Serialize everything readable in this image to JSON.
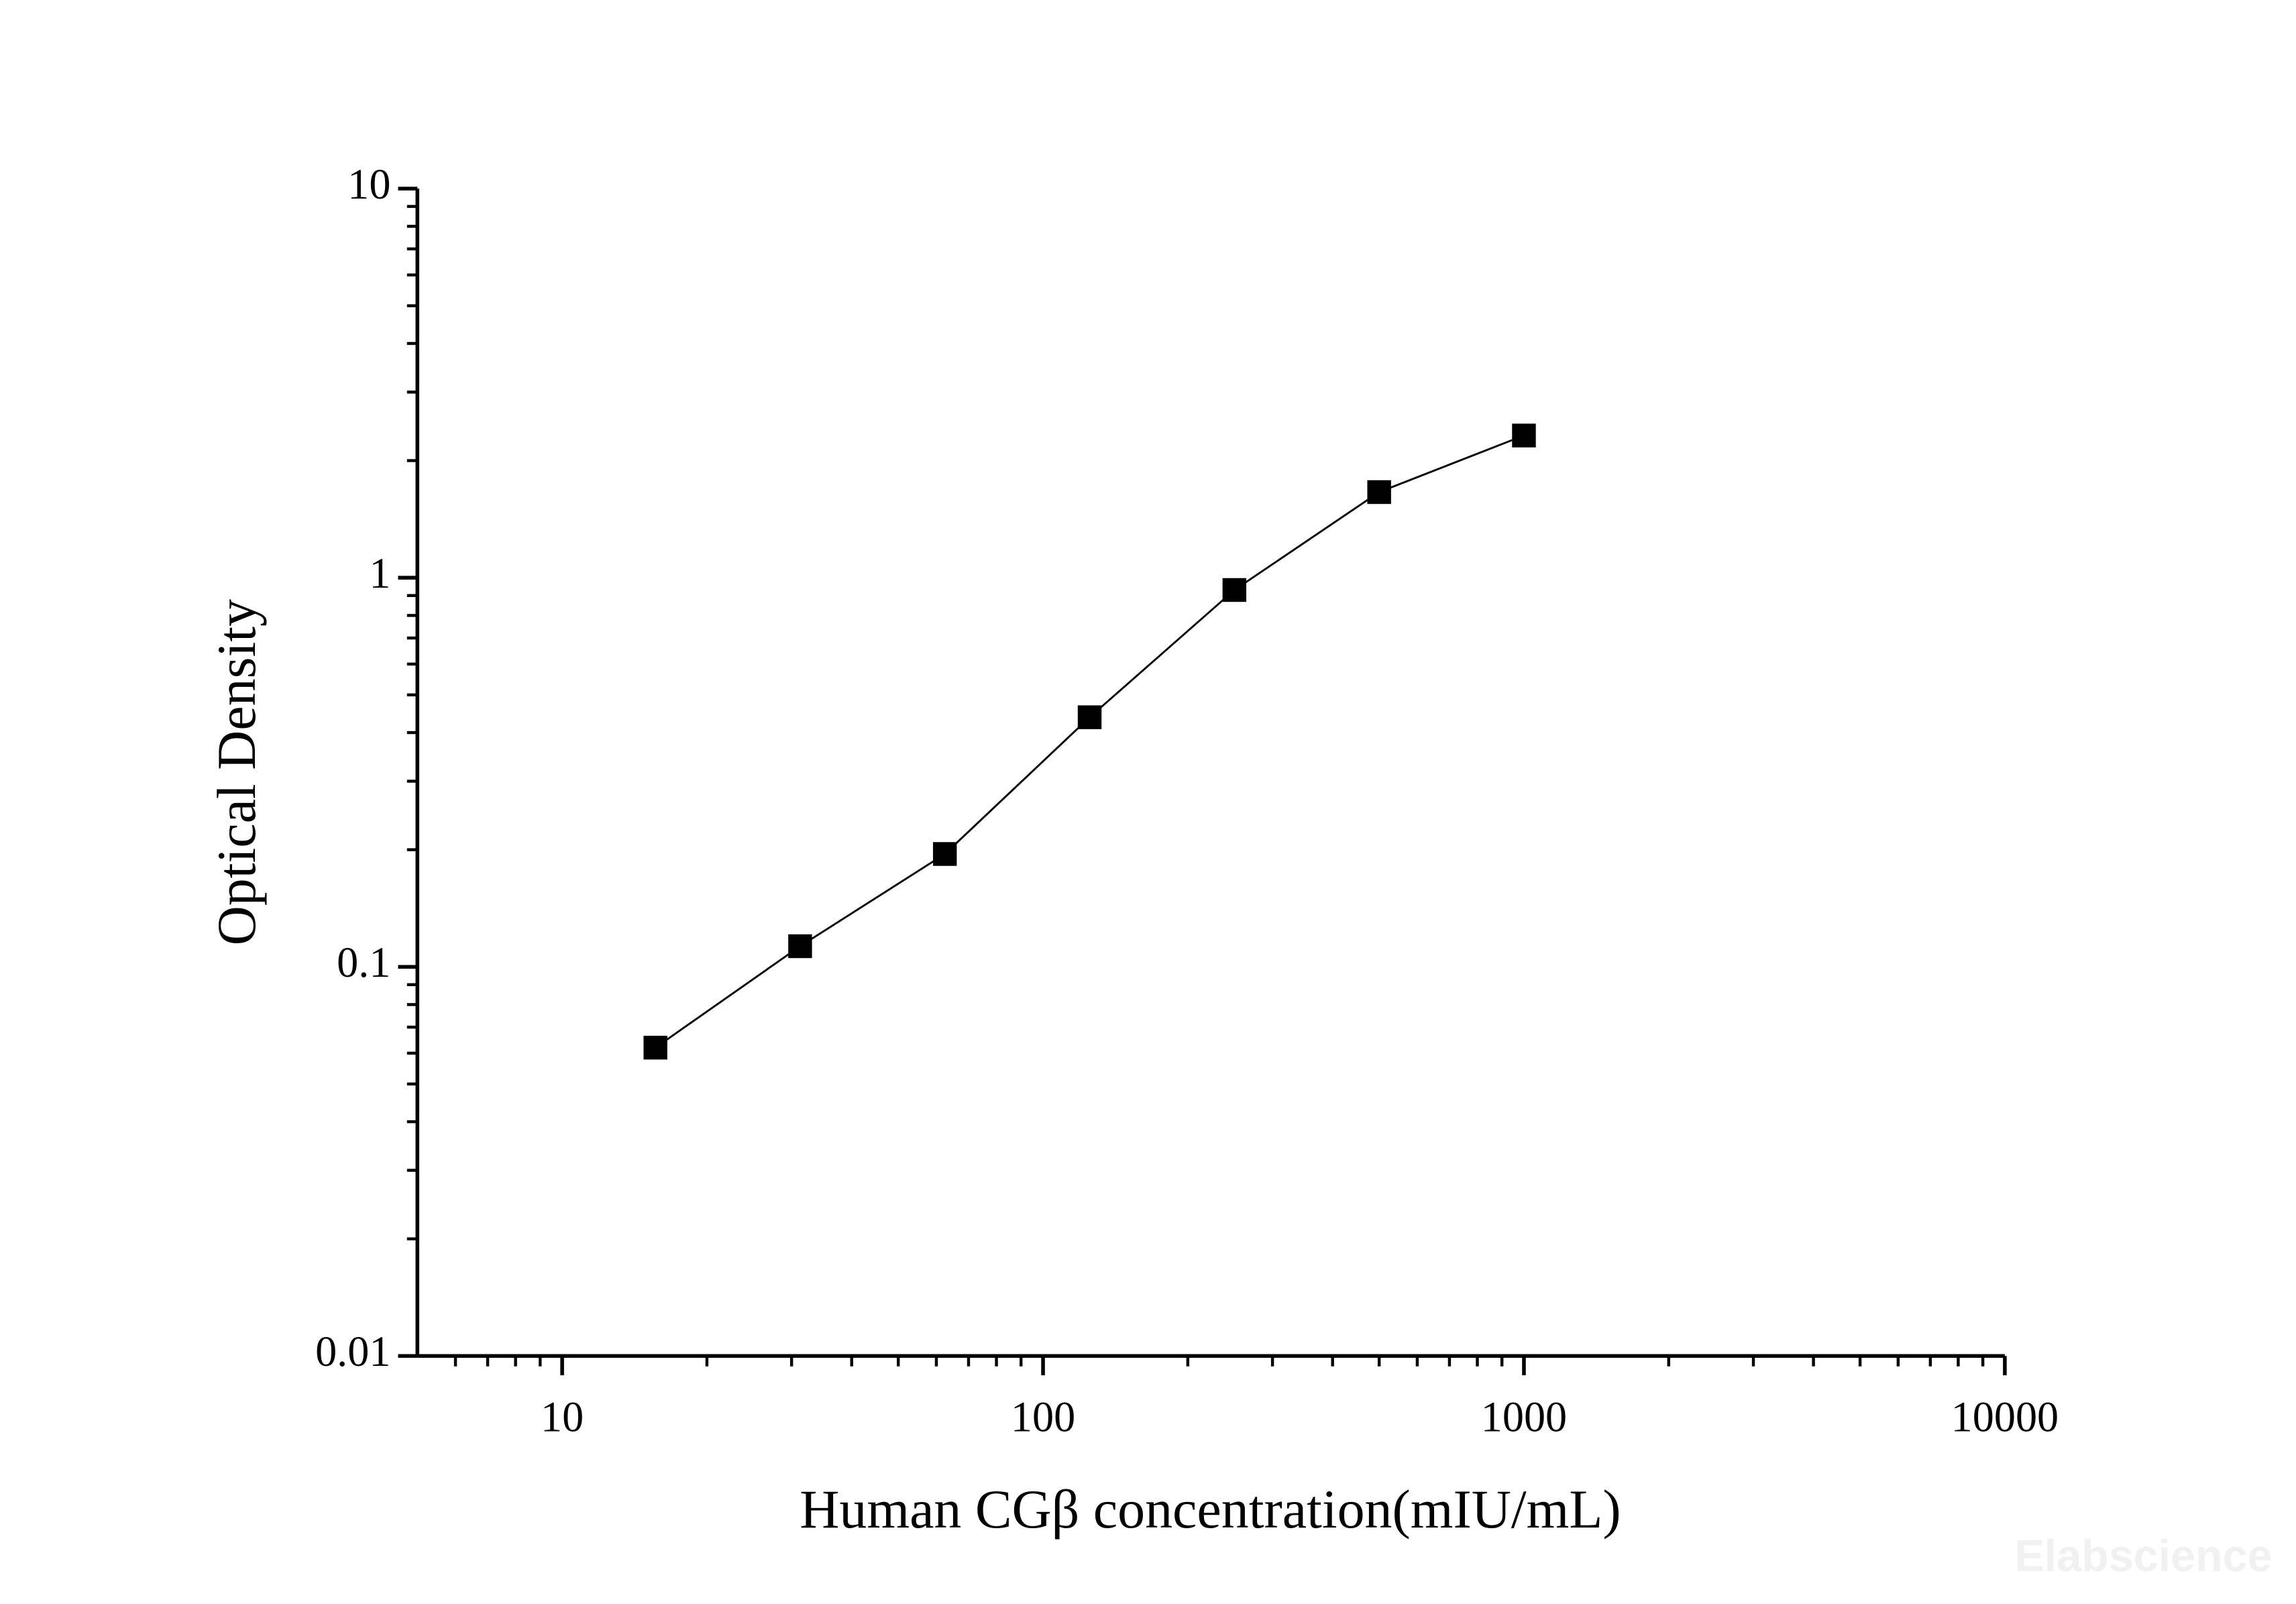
{
  "chart_data": {
    "type": "line",
    "x_label": "Human CGβ concentration(mIU/mL)",
    "y_label": "Optical Density",
    "watermark": "Elabscience",
    "x_log": true,
    "y_log": true,
    "xlim": [
      5,
      10000
    ],
    "xticks": [
      10,
      100,
      1000,
      10000
    ],
    "ylim": [
      0.01,
      10
    ],
    "yticks": [
      0.01,
      0.1,
      1,
      10
    ],
    "minor_ticks": true,
    "marker": "square",
    "series": [
      {
        "color": "#000000",
        "x": [
          15.63,
          31.25,
          62.5,
          125,
          250,
          500,
          1000
        ],
        "values": [
          0.062,
          0.113,
          0.195,
          0.438,
          0.93,
          1.66,
          2.32
        ]
      }
    ]
  }
}
